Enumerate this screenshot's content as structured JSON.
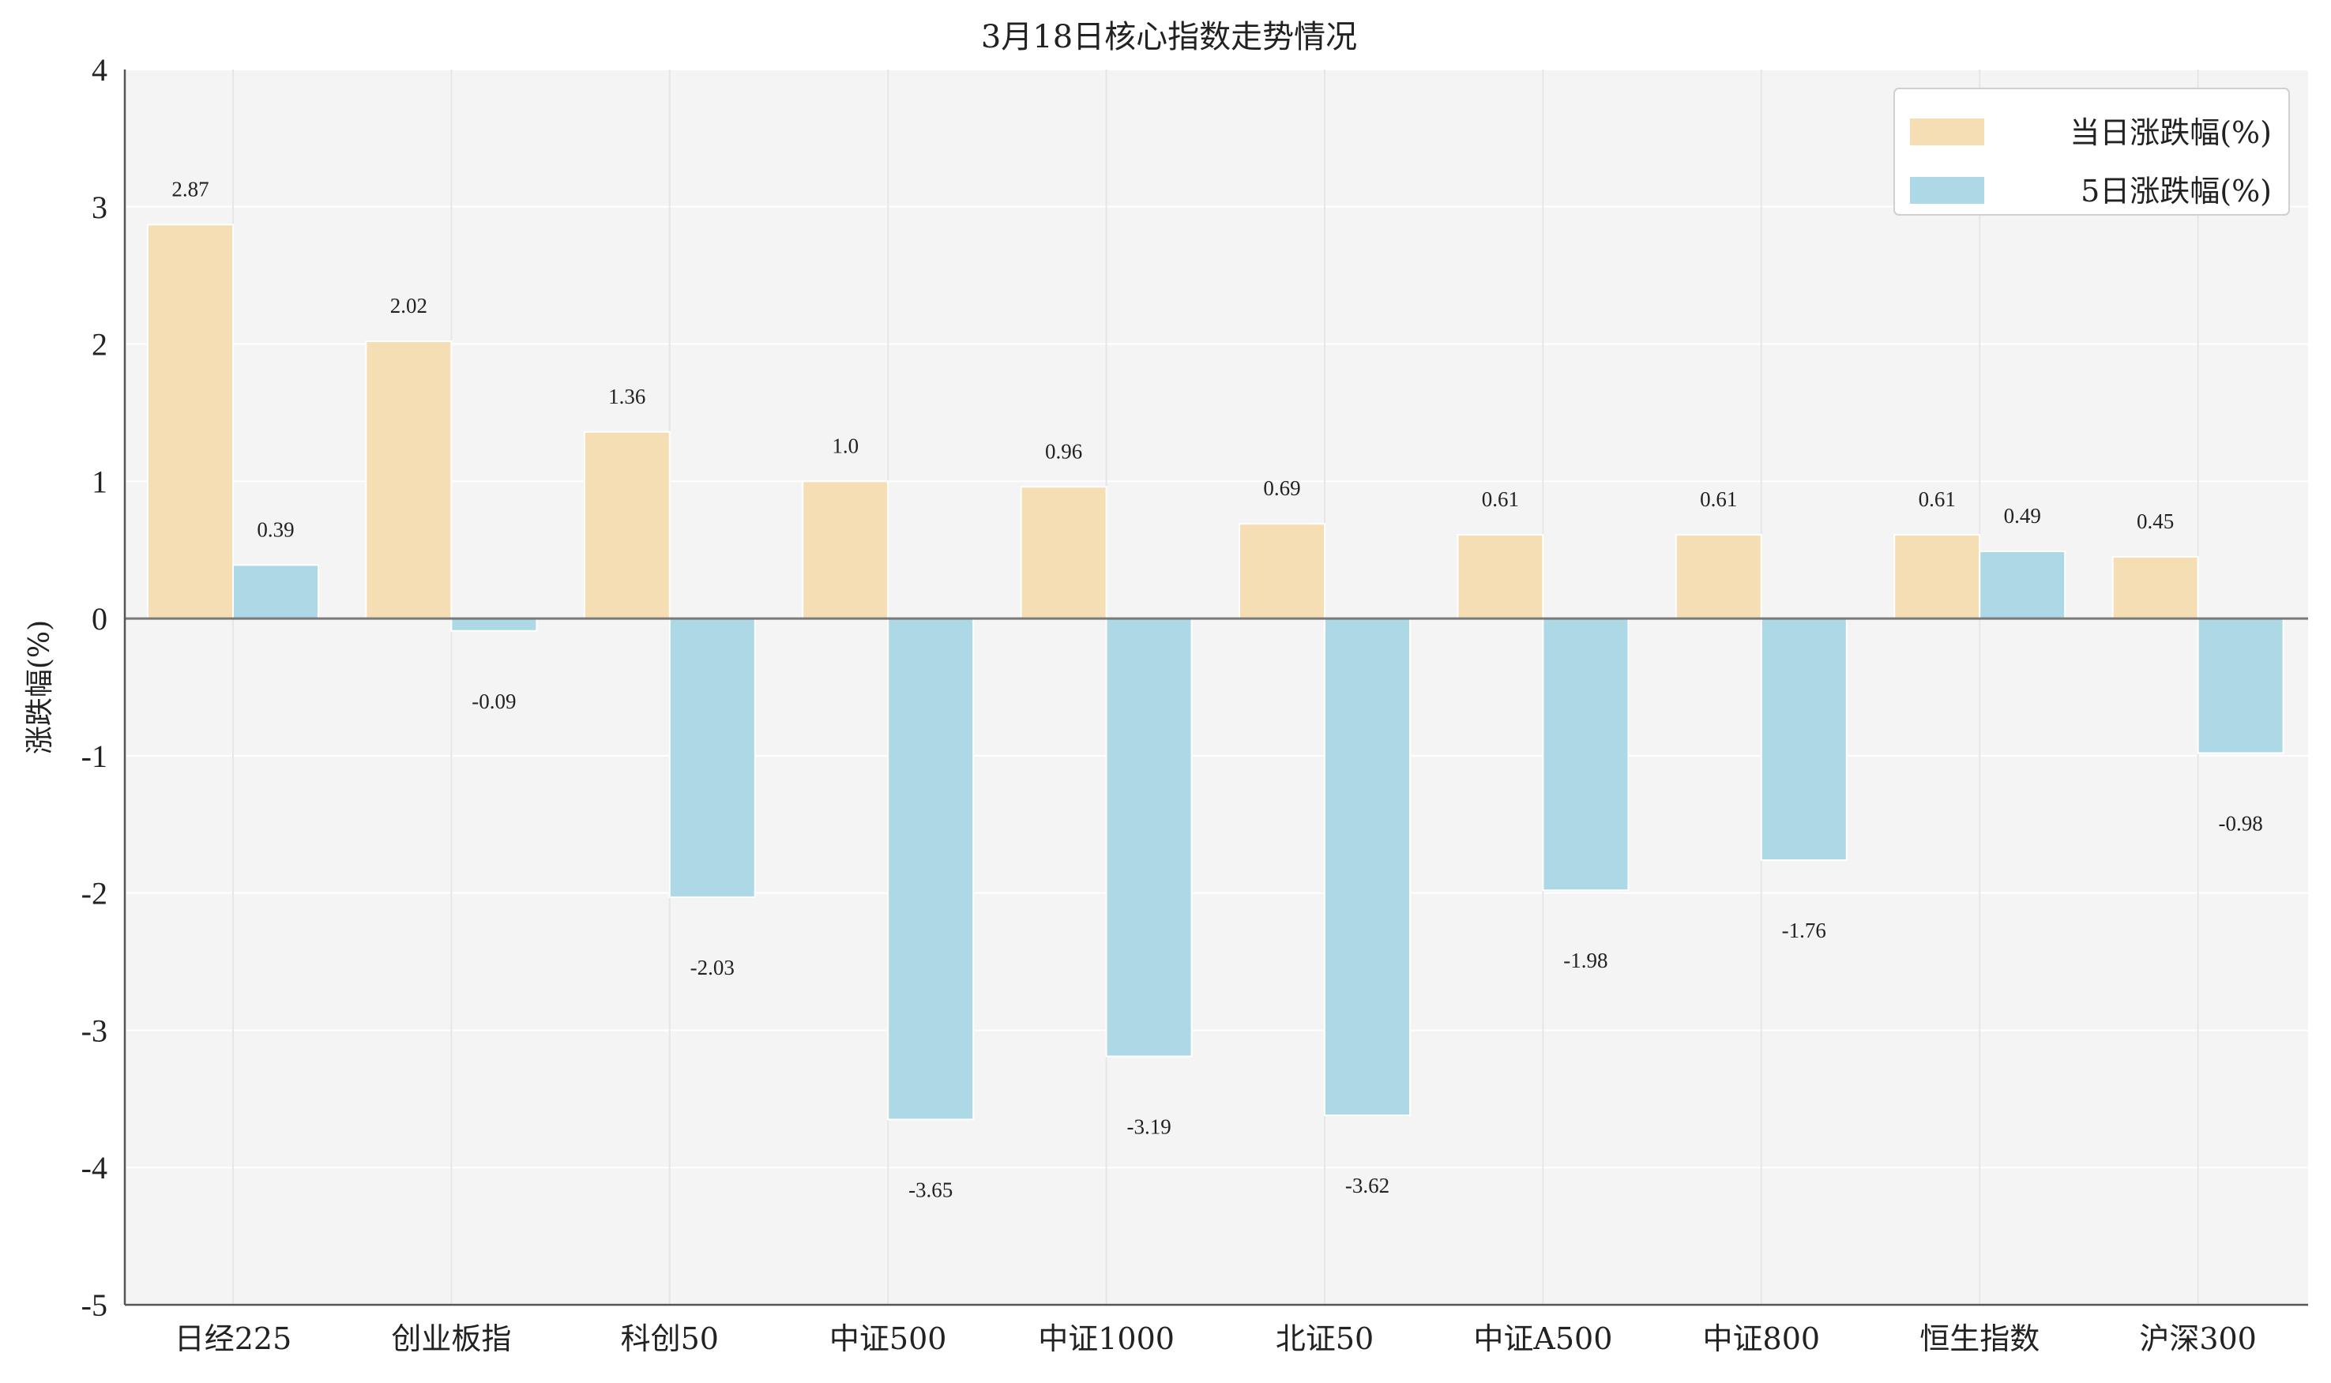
{
  "chart_data": {
    "type": "bar",
    "title": "3月18日核心指数走势情况",
    "ylabel": "涨跌幅(%)",
    "xlabel": "",
    "ylim": [
      -5,
      4
    ],
    "yticks": [
      4,
      3,
      2,
      1,
      0,
      -1,
      -2,
      -3,
      -4,
      -5
    ],
    "grid": true,
    "legend_position": "top-right",
    "categories": [
      "日经225",
      "创业板指",
      "科创50",
      "中证500",
      "中证1000",
      "北证50",
      "中证A500",
      "中证800",
      "恒生指数",
      "沪深300"
    ],
    "series": [
      {
        "name": "当日涨跌幅(%)",
        "color": "#f5deb3",
        "values": [
          2.87,
          2.02,
          1.36,
          1.0,
          0.96,
          0.69,
          0.61,
          0.61,
          0.61,
          0.45
        ],
        "labels": [
          "2.87",
          "2.02",
          "1.36",
          "1.0",
          "0.96",
          "0.69",
          "0.61",
          "0.61",
          "0.61",
          "0.45"
        ]
      },
      {
        "name": "5日涨跌幅(%)",
        "color": "#add8e6",
        "values": [
          0.39,
          -0.09,
          -2.03,
          -3.65,
          -3.19,
          -3.62,
          -1.98,
          -1.76,
          0.49,
          -0.98
        ],
        "labels": [
          "0.39",
          "-0.09",
          "-2.03",
          "-3.65",
          "-3.19",
          "-3.62",
          "-1.98",
          "-1.76",
          "0.49",
          "-0.98"
        ]
      }
    ]
  }
}
